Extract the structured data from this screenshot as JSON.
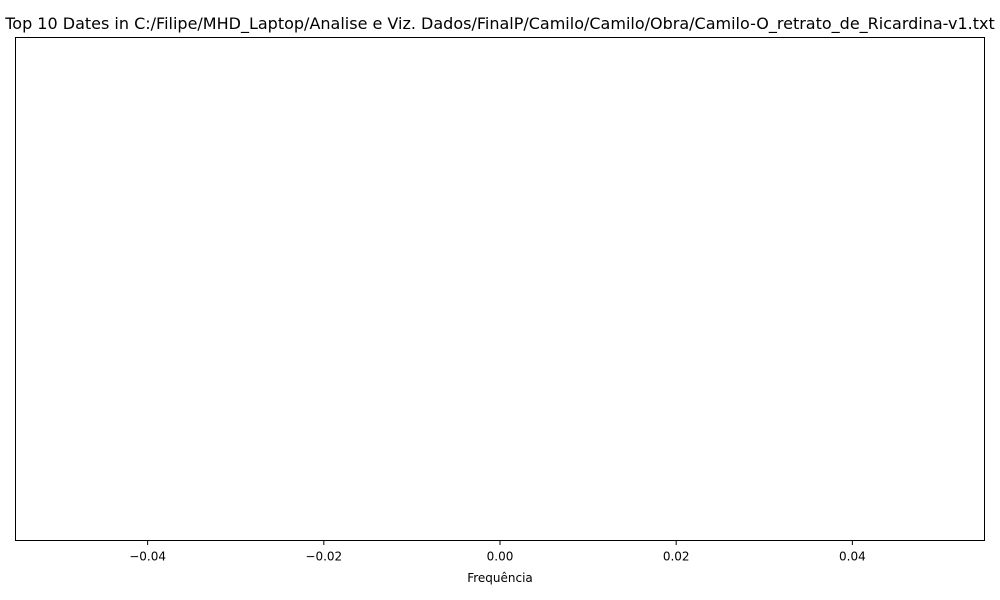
{
  "chart_data": {
    "type": "bar",
    "orientation": "horizontal",
    "title": "Top 10 Dates in C:/Filipe/MHD_Laptop/Analise e Viz. Dados/FinalP/Camilo/Camilo/Obra/Camilo-O_retrato_de_Ricardina-v1.txt",
    "xlabel": "Frequência",
    "ylabel": "",
    "categories": [],
    "values": [],
    "xlim": [
      -0.055,
      0.055
    ],
    "xticks": [
      -0.04,
      -0.02,
      0.0,
      0.02,
      0.04
    ],
    "xtick_labels": [
      "−0.04",
      "−0.02",
      "0.00",
      "0.02",
      "0.04"
    ],
    "grid": false,
    "legend": "none"
  }
}
